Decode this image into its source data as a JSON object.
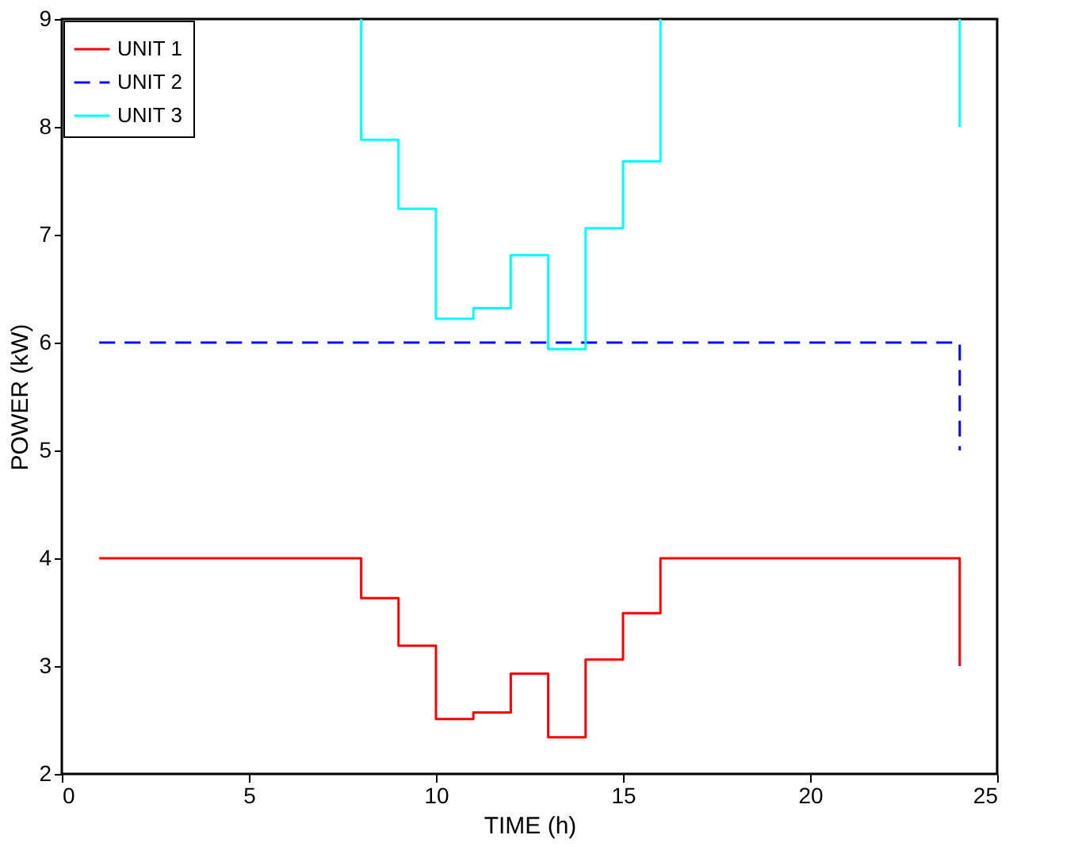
{
  "chart_data": {
    "type": "step",
    "xlabel": "TIME (h)",
    "ylabel": "POWER (kW)",
    "x": [
      1,
      2,
      3,
      4,
      5,
      6,
      7,
      8,
      9,
      10,
      11,
      12,
      13,
      14,
      15,
      16,
      17,
      18,
      19,
      20,
      21,
      22,
      23,
      24
    ],
    "series": [
      {
        "name": "UNIT 1",
        "color": "#ff0000",
        "line_style": "solid",
        "values": [
          4,
          4,
          4,
          4,
          4,
          4,
          4,
          3.63,
          3.19,
          2.51,
          2.57,
          2.93,
          2.34,
          3.06,
          3.49,
          4,
          4,
          4,
          4,
          4,
          4,
          4,
          4,
          3
        ]
      },
      {
        "name": "UNIT 2",
        "color": "#0000ff",
        "line_style": "dashed",
        "values": [
          6,
          6,
          6,
          6,
          6,
          6,
          6,
          6,
          6,
          6,
          6,
          6,
          6,
          6,
          6,
          6,
          6,
          6,
          6,
          6,
          6,
          6,
          6,
          5
        ]
      },
      {
        "name": "UNIT 3",
        "color": "#00ffff",
        "line_style": "solid",
        "x": [
          8,
          8,
          9,
          10,
          11,
          12,
          13,
          14,
          15,
          16,
          20,
          24,
          24
        ],
        "values": [
          9,
          7.88,
          7.24,
          6.22,
          6.32,
          6.81,
          5.94,
          7.06,
          7.68,
          9,
          null,
          9,
          8
        ]
      }
    ],
    "xlim": [
      0,
      25
    ],
    "xticks": [
      0,
      5,
      10,
      15,
      20,
      25
    ],
    "ylim": [
      2,
      9
    ],
    "yticks": [
      2,
      3,
      4,
      5,
      6,
      7,
      8,
      9
    ],
    "grid": false,
    "legend": "top left",
    "marker": "none"
  }
}
